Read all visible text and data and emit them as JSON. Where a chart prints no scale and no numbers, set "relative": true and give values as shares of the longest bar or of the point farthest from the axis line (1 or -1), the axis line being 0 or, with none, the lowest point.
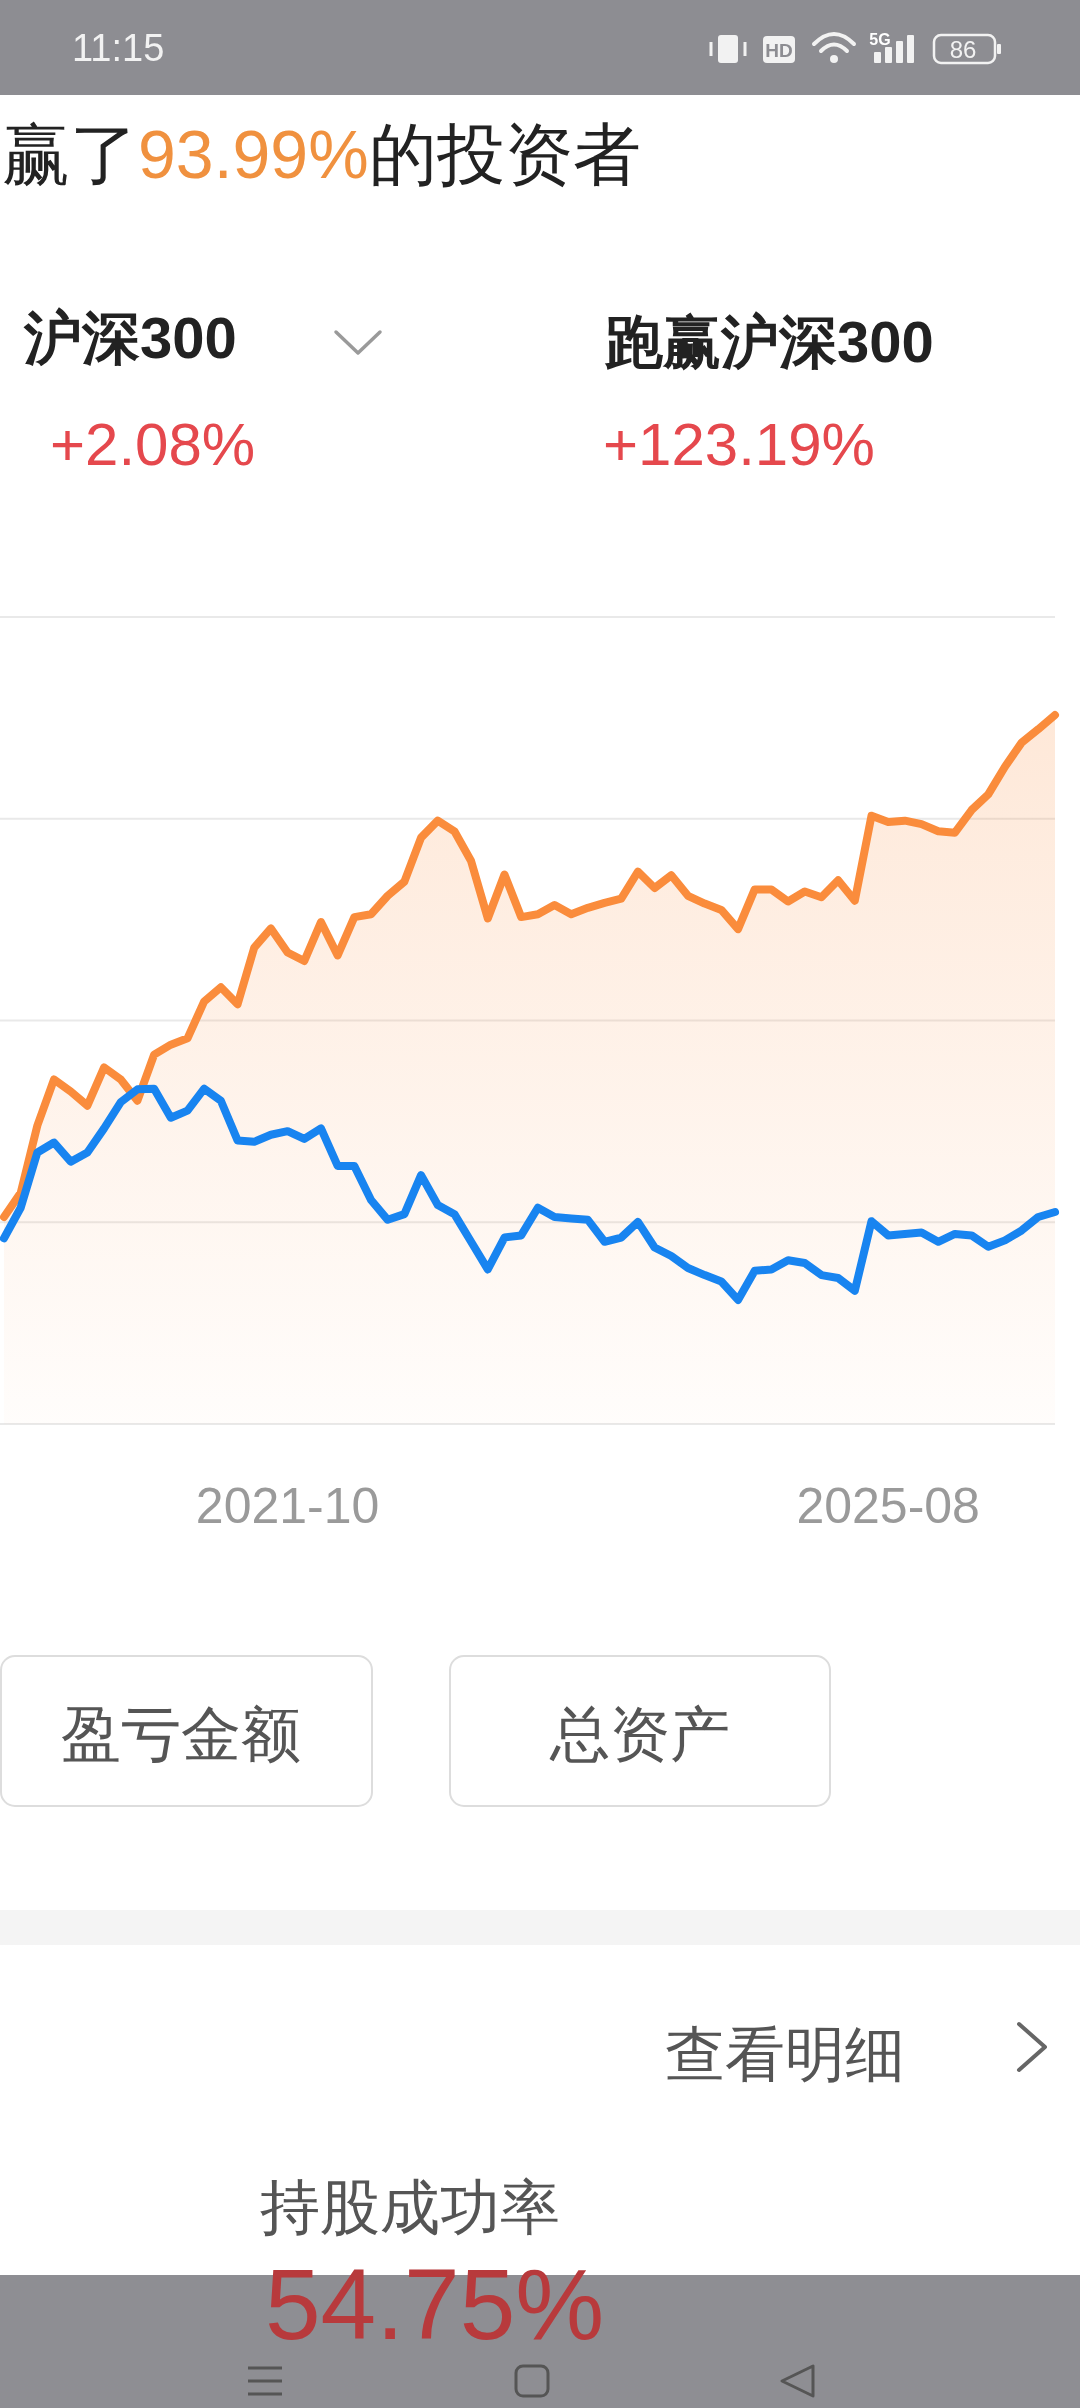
{
  "chart_data": {
    "type": "line",
    "title": "赢了93.99%的投资者",
    "categories": [
      null,
      null,
      null,
      null,
      null,
      null,
      null,
      null,
      null,
      null,
      null,
      null,
      null,
      null,
      null,
      null,
      null,
      "2021-10",
      null,
      null,
      null,
      null,
      null,
      null,
      null,
      null,
      null,
      null,
      null,
      null,
      null,
      null,
      null,
      null,
      null,
      null,
      null,
      null,
      null,
      null,
      null,
      null,
      null,
      null,
      null,
      null,
      null,
      null,
      null,
      null,
      null,
      null,
      null,
      "2025-08",
      null,
      null,
      null,
      null,
      null,
      null,
      null,
      null,
      null,
      null
    ],
    "series": [
      {
        "type": "area",
        "color": "#fa8c3c",
        "values": [
          0.292,
          0.326,
          0.421,
          0.486,
          0.469,
          0.449,
          0.503,
          0.486,
          0.456,
          0.521,
          0.535,
          0.544,
          0.596,
          0.616,
          0.592,
          0.672,
          0.699,
          0.665,
          0.653,
          0.708,
          0.661,
          0.715,
          0.719,
          0.745,
          0.765,
          0.827,
          0.851,
          0.836,
          0.794,
          0.713,
          0.775,
          0.715,
          0.719,
          0.732,
          0.719,
          0.728,
          0.735,
          0.741,
          0.779,
          0.756,
          0.774,
          0.745,
          0.734,
          0.725,
          0.698,
          0.754,
          0.754,
          0.737,
          0.751,
          0.743,
          0.767,
          0.738,
          0.858,
          0.849,
          0.851,
          0.846,
          0.836,
          0.834,
          0.866,
          0.888,
          0.927,
          0.961,
          0.98,
          1
        ]
      },
      {
        "color": "#1884f0",
        "values": [
          0.262,
          0.305,
          0.383,
          0.397,
          0.37,
          0.383,
          0.417,
          0.454,
          0.472,
          0.473,
          0.432,
          0.442,
          0.473,
          0.456,
          0.4,
          0.398,
          0.408,
          0.413,
          0.402,
          0.417,
          0.364,
          0.364,
          0.316,
          0.288,
          0.296,
          0.351,
          0.309,
          0.296,
          0.257,
          0.218,
          0.263,
          0.266,
          0.305,
          0.292,
          0.29,
          0.288,
          0.257,
          0.263,
          0.285,
          0.249,
          0.237,
          0.22,
          0.21,
          0.201,
          0.175,
          0.216,
          0.218,
          0.231,
          0.227,
          0.21,
          0.206,
          0.188,
          0.286,
          0.266,
          0.268,
          0.27,
          0.257,
          0.268,
          0.266,
          0.25,
          0.259,
          0.273,
          0.292,
          0.299
        ]
      }
    ],
    "relative": true,
    "grid": "y",
    "annotations": [
      "11:15",
      "HD",
      "5G",
      "86",
      "沪深300",
      "+2.08%",
      "跑赢沪深300",
      "+123.19%",
      "盈亏金额",
      "总资产",
      "查看明细",
      "持股成功率",
      "54.75%"
    ]
  }
}
